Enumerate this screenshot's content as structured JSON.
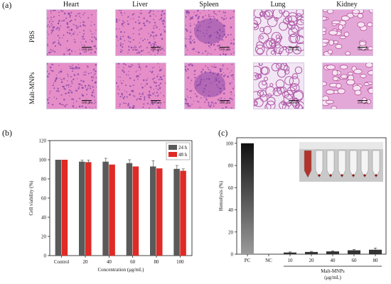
{
  "panels": {
    "a": {
      "label": "(a)",
      "columns": [
        "Heart",
        "Liver",
        "Spleen",
        "Lung",
        "Kidney"
      ],
      "rows": [
        "PBS",
        "Malt-MNPs"
      ],
      "scale_text": "100 μm",
      "colors": {
        "background_stain": "#e68ec8",
        "nuclei": "#7a3fa4",
        "tissue_dark": "#c2549e"
      }
    },
    "b": {
      "label": "(b)"
    },
    "c": {
      "label": "(c)"
    }
  },
  "chart_data": [
    {
      "type": "bar",
      "panel": "(b)",
      "categories": [
        "Control",
        "20",
        "40",
        "60",
        "80",
        "100"
      ],
      "series": [
        {
          "name": "24 h",
          "values": [
            100,
            98,
            98,
            96.5,
            93,
            90.5
          ],
          "errors": [
            0,
            1.5,
            3.5,
            3.5,
            6,
            3.5
          ],
          "color": "#5a5a5a"
        },
        {
          "name": "48 h",
          "values": [
            100,
            97.5,
            95,
            93,
            91,
            88.5
          ],
          "errors": [
            0,
            2,
            0,
            0,
            0,
            2
          ],
          "color": "#e02a25"
        }
      ],
      "xlabel": "Concentration (μg/mL)",
      "ylabel": "Cell viability (%)",
      "ylim": [
        0,
        120
      ],
      "yticks": [
        0,
        20,
        40,
        60,
        80,
        100,
        120
      ],
      "legend_position": "top-right"
    },
    {
      "type": "bar",
      "panel": "(c)",
      "categories": [
        "PC",
        "NC",
        "10",
        "20",
        "40",
        "60",
        "80"
      ],
      "values": [
        100,
        0,
        1.5,
        2,
        2.5,
        3.5,
        4
      ],
      "errors": [
        0,
        0,
        0.5,
        0.5,
        0.5,
        0.7,
        1.5
      ],
      "color": "#333333",
      "xlabel": "Malt-MNPs\n(μg/mL)",
      "xlabel_lines": [
        "Malt-MNPs",
        "(μg/mL)"
      ],
      "ylabel": "Hemolysis (%)",
      "ylim": [
        0,
        105
      ],
      "yticks": [
        0,
        20,
        40,
        60,
        80,
        100
      ],
      "inset": "photo of tubes"
    }
  ]
}
